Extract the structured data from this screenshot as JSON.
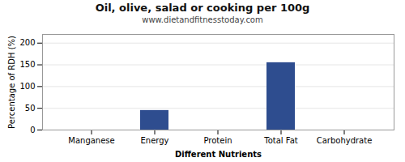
{
  "chart_data": {
    "type": "bar",
    "title": "Oil, olive, salad or cooking per 100g",
    "subtitle": "www.dietandfitnesstoday.com",
    "xlabel": "Different Nutrients",
    "ylabel": "Percentage of RDH (%)",
    "categories": [
      "Manganese",
      "Energy",
      "Protein",
      "Total Fat",
      "Carbohydrate"
    ],
    "values": [
      0,
      45,
      0,
      155,
      0
    ],
    "color": "#2e4d8f",
    "ylim": [
      0,
      220
    ],
    "yticks": [
      0,
      50,
      100,
      150,
      200
    ],
    "grid": true
  }
}
